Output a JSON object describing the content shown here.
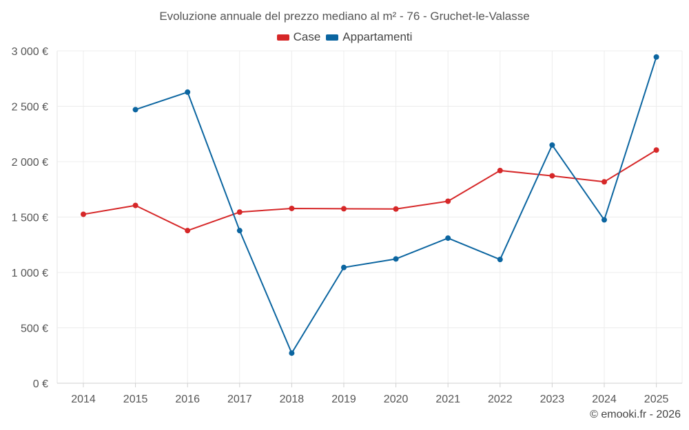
{
  "chart_data": {
    "type": "line",
    "title": "Evoluzione annuale del prezzo mediano al m² - 76 - Gruchet-le-Valasse",
    "categories": [
      "2014",
      "2015",
      "2016",
      "2017",
      "2018",
      "2019",
      "2020",
      "2021",
      "2022",
      "2023",
      "2024",
      "2025"
    ],
    "y_ticks": [
      0,
      500,
      1000,
      1500,
      2000,
      2500,
      3000
    ],
    "y_tick_labels": [
      "0 €",
      "500 €",
      "1 000 €",
      "1 500 €",
      "2 000 €",
      "2 500 €",
      "3 000 €"
    ],
    "ylim": [
      0,
      3000
    ],
    "grid": true,
    "legend_position": "top-center",
    "series": [
      {
        "name": "Case",
        "color": "#d62728",
        "values": [
          1525,
          1605,
          1378,
          1545,
          1578,
          1575,
          1573,
          1643,
          1920,
          1872,
          1818,
          2105
        ]
      },
      {
        "name": "Appartamenti",
        "color": "#0b65a0",
        "values": [
          null,
          2470,
          2628,
          1378,
          272,
          1045,
          1122,
          1310,
          1117,
          2150,
          1475,
          2945
        ]
      }
    ]
  },
  "credit": "© emooki.fr - 2026"
}
